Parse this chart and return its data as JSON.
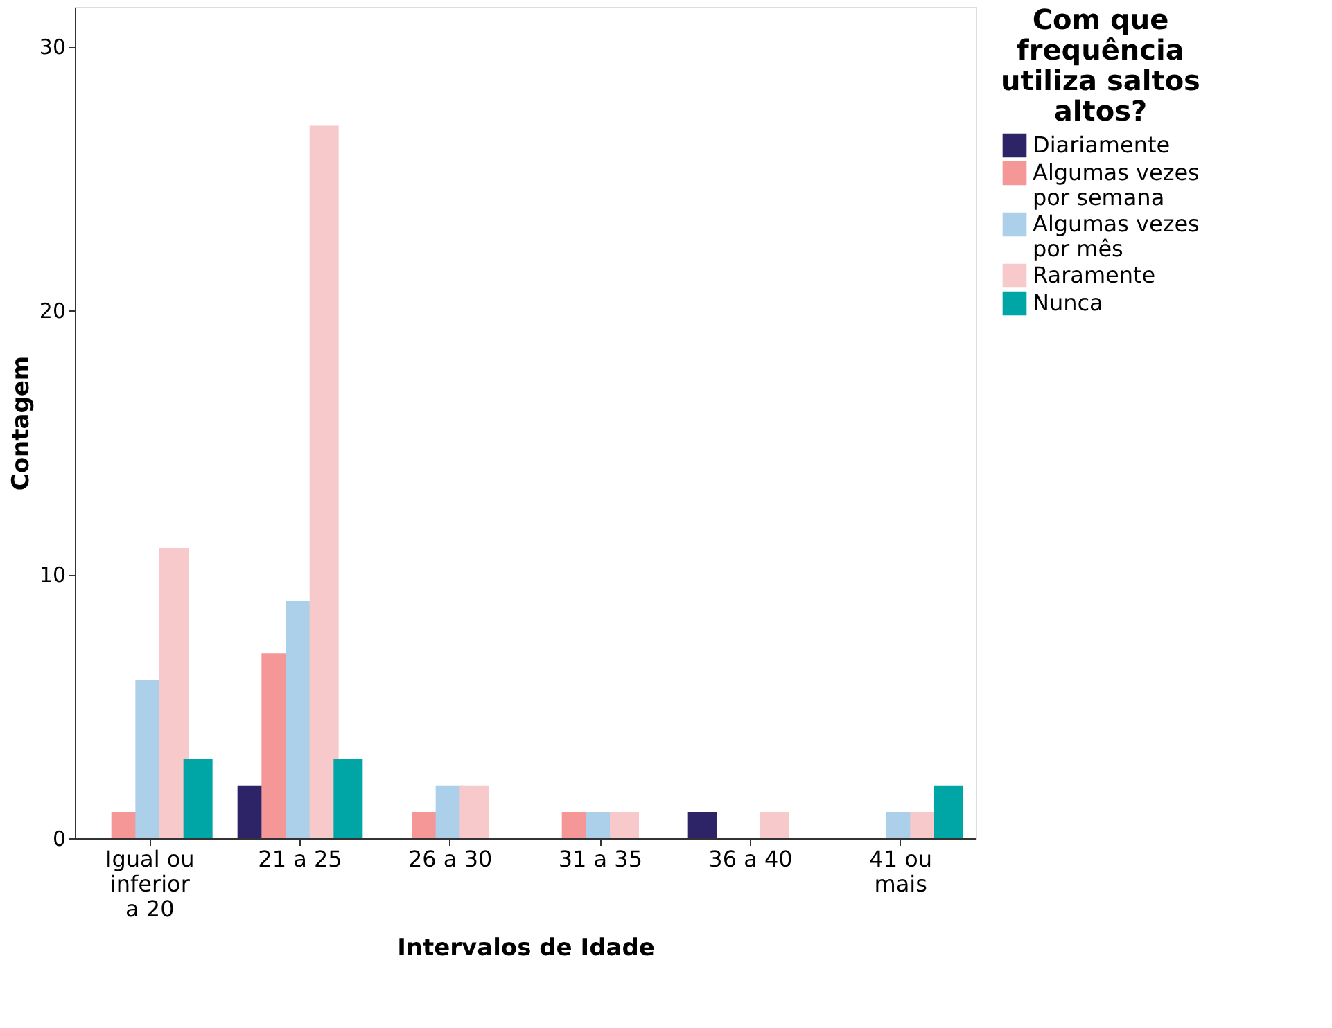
{
  "chart_data": {
    "type": "bar",
    "xlabel": "Intervalos de Idade",
    "ylabel": "Contagem",
    "legend_title": "Com que frequência utiliza saltos altos?",
    "categories": [
      "Igual ou inferior a 20",
      "21 a 25",
      "26 a 30",
      "31 a 35",
      "36 a 40",
      "41 ou mais"
    ],
    "series": [
      {
        "name": "Diariamente",
        "color": "#2c2466",
        "values": [
          null,
          2,
          null,
          null,
          1,
          null
        ]
      },
      {
        "name": "Algumas vezes por semana",
        "color": "#f59797",
        "values": [
          1,
          7,
          1,
          1,
          null,
          null
        ]
      },
      {
        "name": "Algumas vezes por mês",
        "color": "#acd0ea",
        "values": [
          6,
          9,
          2,
          1,
          null,
          1
        ]
      },
      {
        "name": "Raramente",
        "color": "#f8c9ca",
        "values": [
          11,
          27,
          2,
          1,
          1,
          1
        ]
      },
      {
        "name": "Nunca",
        "color": "#00a5a6",
        "values": [
          3,
          3,
          null,
          null,
          null,
          2
        ]
      }
    ],
    "ylim": [
      0,
      31.5
    ],
    "yticks": [
      0,
      10,
      20,
      30
    ],
    "grid": false,
    "legend": "right"
  }
}
